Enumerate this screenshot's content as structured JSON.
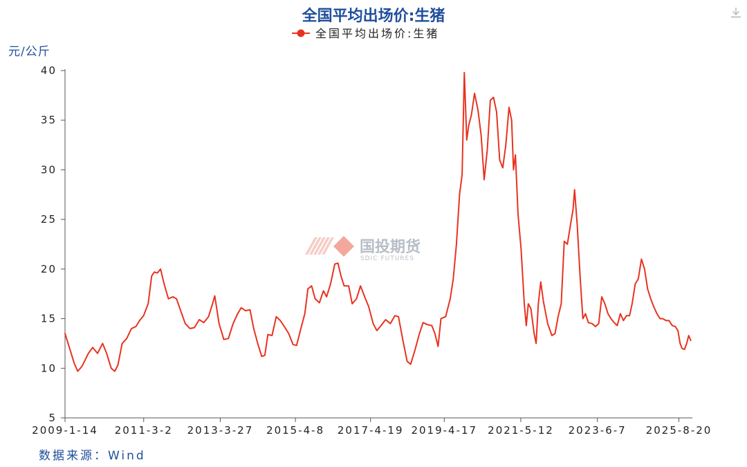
{
  "chart_data": {
    "type": "line",
    "title": "全国平均出场价:生猪",
    "ylabel": "元/公斤",
    "ylim": [
      5,
      40
    ],
    "y_ticks": [
      "5",
      "10",
      "15",
      "20",
      "25",
      "30",
      "35",
      "40"
    ],
    "x_range": [
      "2009-01-14",
      "2025-12-31"
    ],
    "x_ticks": [
      "2009-1-14",
      "2011-3-2",
      "2013-3-27",
      "2015-4-8",
      "2017-4-19",
      "2019-4-17",
      "2021-5-12",
      "2023-6-7",
      "2025-8-20"
    ],
    "legend_position": "top-center",
    "grid": false,
    "series": [
      {
        "name": "全国平均出场价:生猪",
        "color": "#e8321f",
        "points": [
          [
            "2009-01-14",
            13.5
          ],
          [
            "2009-03-01",
            12.0
          ],
          [
            "2009-04-15",
            10.5
          ],
          [
            "2009-05-20",
            9.7
          ],
          [
            "2009-07-01",
            10.2
          ],
          [
            "2009-09-01",
            11.5
          ],
          [
            "2009-10-15",
            12.1
          ],
          [
            "2009-12-01",
            11.5
          ],
          [
            "2010-01-20",
            12.5
          ],
          [
            "2010-03-01",
            11.5
          ],
          [
            "2010-04-15",
            10.0
          ],
          [
            "2010-05-20",
            9.7
          ],
          [
            "2010-06-20",
            10.3
          ],
          [
            "2010-08-01",
            12.5
          ],
          [
            "2010-09-15",
            13.0
          ],
          [
            "2010-11-01",
            14.0
          ],
          [
            "2010-12-15",
            14.2
          ],
          [
            "2011-01-20",
            14.8
          ],
          [
            "2011-03-01",
            15.3
          ],
          [
            "2011-04-15",
            16.5
          ],
          [
            "2011-05-20",
            19.3
          ],
          [
            "2011-06-15",
            19.7
          ],
          [
            "2011-07-15",
            19.6
          ],
          [
            "2011-08-15",
            20.0
          ],
          [
            "2011-09-20",
            18.5
          ],
          [
            "2011-11-01",
            17.0
          ],
          [
            "2011-12-15",
            17.2
          ],
          [
            "2012-01-20",
            17.0
          ],
          [
            "2012-03-01",
            15.8
          ],
          [
            "2012-04-15",
            14.5
          ],
          [
            "2012-06-01",
            14.0
          ],
          [
            "2012-07-15",
            14.1
          ],
          [
            "2012-09-01",
            14.9
          ],
          [
            "2012-10-15",
            14.6
          ],
          [
            "2012-12-01",
            15.2
          ],
          [
            "2013-01-10",
            16.5
          ],
          [
            "2013-02-01",
            17.3
          ],
          [
            "2013-03-15",
            14.5
          ],
          [
            "2013-05-01",
            12.9
          ],
          [
            "2013-06-15",
            13.0
          ],
          [
            "2013-08-01",
            14.5
          ],
          [
            "2013-09-15",
            15.5
          ],
          [
            "2013-10-20",
            16.1
          ],
          [
            "2013-12-01",
            15.8
          ],
          [
            "2014-01-15",
            15.9
          ],
          [
            "2014-02-20",
            14.0
          ],
          [
            "2014-04-01",
            12.5
          ],
          [
            "2014-05-10",
            11.2
          ],
          [
            "2014-06-10",
            11.3
          ],
          [
            "2014-07-10",
            13.4
          ],
          [
            "2014-08-20",
            13.3
          ],
          [
            "2014-10-01",
            15.2
          ],
          [
            "2014-11-10",
            14.8
          ],
          [
            "2014-12-20",
            14.2
          ],
          [
            "2015-02-01",
            13.5
          ],
          [
            "2015-03-15",
            12.4
          ],
          [
            "2015-04-20",
            12.3
          ],
          [
            "2015-06-01",
            14.0
          ],
          [
            "2015-07-10",
            15.5
          ],
          [
            "2015-08-10",
            18.0
          ],
          [
            "2015-09-15",
            18.3
          ],
          [
            "2015-10-20",
            17.0
          ],
          [
            "2015-12-01",
            16.6
          ],
          [
            "2016-01-10",
            17.8
          ],
          [
            "2016-02-10",
            17.2
          ],
          [
            "2016-03-20",
            18.5
          ],
          [
            "2016-05-01",
            20.5
          ],
          [
            "2016-06-01",
            20.6
          ],
          [
            "2016-07-01",
            19.3
          ],
          [
            "2016-08-01",
            18.3
          ],
          [
            "2016-09-15",
            18.3
          ],
          [
            "2016-10-20",
            16.5
          ],
          [
            "2016-12-01",
            17.0
          ],
          [
            "2017-01-10",
            18.3
          ],
          [
            "2017-02-20",
            17.2
          ],
          [
            "2017-04-01",
            16.2
          ],
          [
            "2017-05-15",
            14.5
          ],
          [
            "2017-06-20",
            13.8
          ],
          [
            "2017-08-01",
            14.3
          ],
          [
            "2017-09-15",
            14.9
          ],
          [
            "2017-11-01",
            14.5
          ],
          [
            "2017-12-15",
            15.3
          ],
          [
            "2018-01-20",
            15.2
          ],
          [
            "2018-03-01",
            13.0
          ],
          [
            "2018-04-15",
            10.7
          ],
          [
            "2018-05-20",
            10.4
          ],
          [
            "2018-07-01",
            11.8
          ],
          [
            "2018-08-15",
            13.5
          ],
          [
            "2018-09-20",
            14.6
          ],
          [
            "2018-11-01",
            14.4
          ],
          [
            "2018-12-15",
            14.3
          ],
          [
            "2019-01-15",
            13.5
          ],
          [
            "2019-02-15",
            12.2
          ],
          [
            "2019-03-15",
            15.0
          ],
          [
            "2019-05-01",
            15.2
          ],
          [
            "2019-06-15",
            17.0
          ],
          [
            "2019-07-15",
            19.0
          ],
          [
            "2019-08-15",
            22.5
          ],
          [
            "2019-09-15",
            27.5
          ],
          [
            "2019-10-10",
            29.5
          ],
          [
            "2019-11-01",
            39.8
          ],
          [
            "2019-11-25",
            33.0
          ],
          [
            "2019-12-15",
            34.5
          ],
          [
            "2020-01-10",
            35.5
          ],
          [
            "2020-02-10",
            37.7
          ],
          [
            "2020-03-15",
            36.0
          ],
          [
            "2020-04-15",
            33.5
          ],
          [
            "2020-05-15",
            29.0
          ],
          [
            "2020-06-15",
            32.0
          ],
          [
            "2020-07-15",
            37.0
          ],
          [
            "2020-08-15",
            37.3
          ],
          [
            "2020-09-15",
            35.8
          ],
          [
            "2020-10-15",
            31.0
          ],
          [
            "2020-11-15",
            30.2
          ],
          [
            "2020-12-15",
            32.5
          ],
          [
            "2021-01-15",
            36.3
          ],
          [
            "2021-02-10",
            35.0
          ],
          [
            "2021-03-01",
            30.0
          ],
          [
            "2021-03-20",
            31.5
          ],
          [
            "2021-04-15",
            25.5
          ],
          [
            "2021-05-15",
            22.0
          ],
          [
            "2021-06-15",
            16.5
          ],
          [
            "2021-07-05",
            14.3
          ],
          [
            "2021-07-25",
            16.5
          ],
          [
            "2021-08-20",
            16.0
          ],
          [
            "2021-09-20",
            13.5
          ],
          [
            "2021-10-10",
            12.5
          ],
          [
            "2021-11-01",
            16.5
          ],
          [
            "2021-11-25",
            18.7
          ],
          [
            "2021-12-20",
            16.8
          ],
          [
            "2022-02-01",
            14.5
          ],
          [
            "2022-03-15",
            13.3
          ],
          [
            "2022-04-15",
            13.5
          ],
          [
            "2022-05-15",
            15.2
          ],
          [
            "2022-06-15",
            16.5
          ],
          [
            "2022-07-15",
            22.8
          ],
          [
            "2022-08-15",
            22.5
          ],
          [
            "2022-09-15",
            24.5
          ],
          [
            "2022-10-10",
            26.0
          ],
          [
            "2022-10-25",
            28.0
          ],
          [
            "2022-11-20",
            24.5
          ],
          [
            "2022-12-20",
            19.0
          ],
          [
            "2023-01-15",
            15.0
          ],
          [
            "2023-02-10",
            15.5
          ],
          [
            "2023-03-10",
            14.6
          ],
          [
            "2023-04-15",
            14.5
          ],
          [
            "2023-05-20",
            14.2
          ],
          [
            "2023-06-20",
            14.5
          ],
          [
            "2023-07-20",
            17.2
          ],
          [
            "2023-08-20",
            16.5
          ],
          [
            "2023-09-20",
            15.5
          ],
          [
            "2023-10-20",
            15.0
          ],
          [
            "2023-11-20",
            14.6
          ],
          [
            "2023-12-20",
            14.3
          ],
          [
            "2024-01-20",
            15.5
          ],
          [
            "2024-02-20",
            14.8
          ],
          [
            "2024-03-20",
            15.3
          ],
          [
            "2024-04-20",
            15.3
          ],
          [
            "2024-05-15",
            16.5
          ],
          [
            "2024-06-15",
            18.5
          ],
          [
            "2024-07-15",
            19.0
          ],
          [
            "2024-08-15",
            21.0
          ],
          [
            "2024-09-15",
            20.0
          ],
          [
            "2024-10-15",
            18.0
          ],
          [
            "2024-11-15",
            17.0
          ],
          [
            "2024-12-15",
            16.2
          ],
          [
            "2025-01-15",
            15.5
          ],
          [
            "2025-02-15",
            15.0
          ],
          [
            "2025-03-15",
            15.0
          ],
          [
            "2025-04-15",
            14.8
          ],
          [
            "2025-05-15",
            14.8
          ],
          [
            "2025-06-15",
            14.3
          ],
          [
            "2025-07-15",
            14.2
          ],
          [
            "2025-08-10",
            13.8
          ],
          [
            "2025-09-01",
            12.5
          ],
          [
            "2025-09-20",
            12.0
          ],
          [
            "2025-10-15",
            11.9
          ],
          [
            "2025-11-05",
            12.5
          ],
          [
            "2025-11-25",
            13.3
          ],
          [
            "2025-12-15",
            12.8
          ]
        ]
      }
    ]
  },
  "unit_label": "元/公斤",
  "source": "数据来源：Wind",
  "watermark": {
    "name": "国投期货",
    "sub": "SDIC FUTURES"
  },
  "download_icon": "download-icon"
}
